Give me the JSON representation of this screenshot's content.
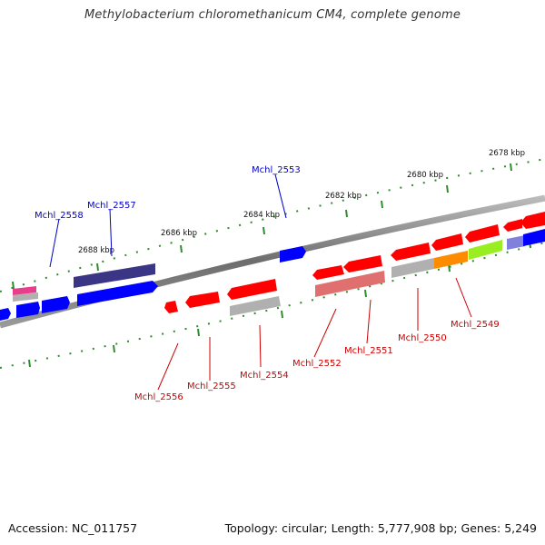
{
  "title": "Methylobacterium chloromethanicum CM4, complete genome",
  "footer": {
    "accession": "Accession: NC_011757",
    "summary": "Topology: circular; Length: 5,777,908 bp; Genes: 5,249"
  },
  "colors": {
    "backbone": "#777777",
    "ticks": "#2e8b2e",
    "forward_label": "#0000cc",
    "reverse_label": "#cc0000",
    "red": "#ff0000",
    "blue": "#0000ff",
    "navy": "#3a3585",
    "grey": "#b0b0b0",
    "pink": "#e83e8c",
    "salmon": "#e07070",
    "orange": "#ff8c00",
    "lime": "#99ee22",
    "lavender": "#8080dd"
  },
  "scale_labels": [
    "2678 kbp",
    "2680 kbp",
    "2682 kbp",
    "2684 kbp",
    "2686 kbp",
    "2688 kbp"
  ],
  "forward_genes": [
    "Mchl_2558",
    "Mchl_2557",
    "Mchl_2553"
  ],
  "reverse_genes": [
    "Mchl_2556",
    "Mchl_2555",
    "Mchl_2554",
    "Mchl_2552",
    "Mchl_2551",
    "Mchl_2550",
    "Mchl_2549"
  ]
}
